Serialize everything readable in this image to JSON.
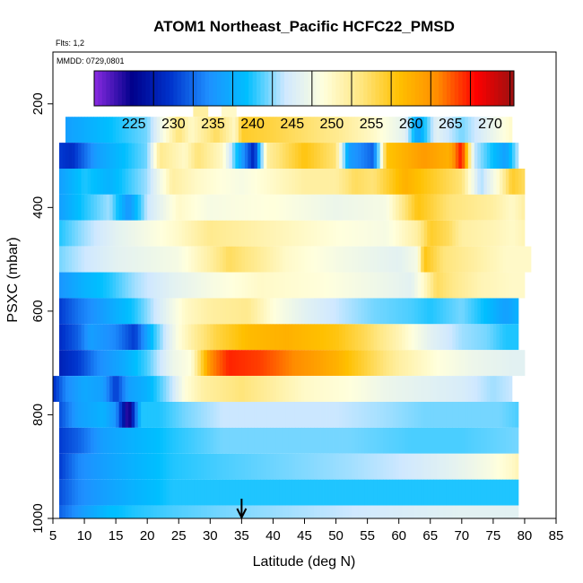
{
  "chart_data": {
    "type": "heatmap",
    "title": "ATOM1 Northeast_Pacific HCFC22_PMSD",
    "flights_text": "Flts: 1,2",
    "mmdd_text": "MMDD: 0729,0801",
    "xlabel": "Latitude (deg N)",
    "ylabel": "PSXC (mbar)",
    "xlim": [
      5,
      85
    ],
    "ylim": [
      1000,
      100
    ],
    "x_ticks": [
      5,
      10,
      15,
      20,
      25,
      30,
      35,
      40,
      45,
      50,
      55,
      60,
      65,
      70,
      75,
      80,
      85
    ],
    "y_ticks": [
      200,
      400,
      600,
      800,
      1000
    ],
    "marker": {
      "latitude": 35,
      "symbol": "arrow-down"
    },
    "colorbar": {
      "min": 220,
      "max": 273,
      "ticks": [
        225,
        230,
        235,
        240,
        245,
        250,
        255,
        260,
        265,
        270
      ],
      "colors": [
        "#8a2be2",
        "#00008b",
        "#0033cc",
        "#1e90ff",
        "#00bfff",
        "#cfe8ff",
        "#ffffdd",
        "#ffe680",
        "#ffc000",
        "#ff8c00",
        "#ff0000",
        "#9b1010"
      ]
    },
    "rows": [
      {
        "pressure": 250,
        "stops": [
          [
            7,
            236
          ],
          [
            20,
            242
          ],
          [
            25,
            254
          ],
          [
            27,
            250
          ],
          [
            31,
            255
          ],
          [
            34,
            250
          ],
          [
            35,
            257
          ],
          [
            40,
            256
          ],
          [
            50,
            253
          ],
          [
            56,
            250
          ],
          [
            61,
            246
          ],
          [
            63,
            236
          ],
          [
            66,
            246
          ],
          [
            70,
            242
          ],
          [
            74,
            246
          ],
          [
            78,
            250
          ]
        ]
      },
      {
        "pressure": 300,
        "stops": [
          [
            6,
            230
          ],
          [
            8,
            229
          ],
          [
            12,
            236
          ],
          [
            20,
            242
          ],
          [
            22,
            253
          ],
          [
            26,
            250
          ],
          [
            28,
            254
          ],
          [
            32,
            250
          ],
          [
            35,
            236
          ],
          [
            37,
            228
          ],
          [
            39,
            252
          ],
          [
            45,
            258
          ],
          [
            50,
            254
          ],
          [
            52,
            236
          ],
          [
            56,
            232
          ],
          [
            58,
            258
          ],
          [
            64,
            262
          ],
          [
            68,
            260
          ],
          [
            70,
            268
          ],
          [
            72,
            244
          ],
          [
            77,
            236
          ],
          [
            79,
            244
          ]
        ]
      },
      {
        "pressure": 350,
        "stops": [
          [
            6,
            236
          ],
          [
            10,
            240
          ],
          [
            14,
            238
          ],
          [
            20,
            243
          ],
          [
            24,
            252
          ],
          [
            28,
            250
          ],
          [
            35,
            248
          ],
          [
            40,
            250
          ],
          [
            45,
            252
          ],
          [
            50,
            252
          ],
          [
            53,
            255
          ],
          [
            56,
            254
          ],
          [
            61,
            260
          ],
          [
            64,
            258
          ],
          [
            70,
            254
          ],
          [
            73,
            243
          ],
          [
            76,
            250
          ],
          [
            78,
            257
          ],
          [
            80,
            255
          ]
        ]
      },
      {
        "pressure": 400,
        "stops": [
          [
            6,
            236
          ],
          [
            10,
            240
          ],
          [
            14,
            243
          ],
          [
            17,
            235
          ],
          [
            20,
            244
          ],
          [
            25,
            250
          ],
          [
            30,
            248
          ],
          [
            40,
            249
          ],
          [
            50,
            247
          ],
          [
            58,
            248
          ],
          [
            63,
            258
          ],
          [
            68,
            254
          ],
          [
            75,
            252
          ],
          [
            78,
            250
          ],
          [
            80,
            252
          ]
        ]
      },
      {
        "pressure": 450,
        "stops": [
          [
            6,
            240
          ],
          [
            10,
            243
          ],
          [
            15,
            246
          ],
          [
            20,
            248
          ],
          [
            25,
            250
          ],
          [
            30,
            253
          ],
          [
            35,
            252
          ],
          [
            40,
            251
          ],
          [
            50,
            249
          ],
          [
            58,
            248
          ],
          [
            63,
            252
          ],
          [
            65,
            257
          ],
          [
            68,
            255
          ],
          [
            70,
            252
          ],
          [
            75,
            251
          ],
          [
            78,
            250
          ],
          [
            80,
            251
          ]
        ]
      },
      {
        "pressure": 500,
        "stops": [
          [
            6,
            242
          ],
          [
            10,
            244
          ],
          [
            15,
            246
          ],
          [
            20,
            247
          ],
          [
            25,
            248
          ],
          [
            30,
            252
          ],
          [
            33,
            255
          ],
          [
            37,
            253
          ],
          [
            42,
            250
          ],
          [
            50,
            248
          ],
          [
            60,
            246
          ],
          [
            63,
            248
          ],
          [
            64,
            258
          ],
          [
            67,
            254
          ],
          [
            72,
            252
          ],
          [
            77,
            250
          ],
          [
            81,
            250
          ]
        ]
      },
      {
        "pressure": 550,
        "stops": [
          [
            6,
            235
          ],
          [
            10,
            238
          ],
          [
            14,
            240
          ],
          [
            18,
            243
          ],
          [
            24,
            246
          ],
          [
            30,
            248
          ],
          [
            38,
            250
          ],
          [
            48,
            249
          ],
          [
            58,
            247
          ],
          [
            62,
            246
          ],
          [
            64,
            250
          ],
          [
            66,
            255
          ],
          [
            69,
            253
          ],
          [
            73,
            251
          ],
          [
            78,
            250
          ],
          [
            80,
            250
          ]
        ]
      },
      {
        "pressure": 600,
        "stops": [
          [
            6,
            230
          ],
          [
            9,
            233
          ],
          [
            13,
            236
          ],
          [
            18,
            240
          ],
          [
            22,
            245
          ],
          [
            26,
            250
          ],
          [
            30,
            252
          ],
          [
            36,
            253
          ],
          [
            40,
            249
          ],
          [
            45,
            246
          ],
          [
            50,
            244
          ],
          [
            56,
            242
          ],
          [
            62,
            241
          ],
          [
            65,
            240
          ],
          [
            70,
            242
          ],
          [
            74,
            239
          ],
          [
            77,
            236
          ],
          [
            79,
            238
          ]
        ]
      },
      {
        "pressure": 650,
        "stops": [
          [
            6,
            229
          ],
          [
            9,
            232
          ],
          [
            11,
            236
          ],
          [
            15,
            234
          ],
          [
            18,
            230
          ],
          [
            21,
            240
          ],
          [
            25,
            249
          ],
          [
            28,
            253
          ],
          [
            31,
            256
          ],
          [
            36,
            259
          ],
          [
            42,
            260
          ],
          [
            50,
            258
          ],
          [
            55,
            255
          ],
          [
            60,
            251
          ],
          [
            65,
            246
          ],
          [
            70,
            243
          ],
          [
            74,
            242
          ],
          [
            77,
            240
          ],
          [
            79,
            240
          ]
        ]
      },
      {
        "pressure": 700,
        "stops": [
          [
            6,
            228
          ],
          [
            9,
            230
          ],
          [
            12,
            234
          ],
          [
            16,
            237
          ],
          [
            20,
            241
          ],
          [
            24,
            247
          ],
          [
            27,
            249
          ],
          [
            29,
            258
          ],
          [
            30,
            263
          ],
          [
            33,
            267
          ],
          [
            38,
            266
          ],
          [
            44,
            263
          ],
          [
            50,
            260
          ],
          [
            55,
            256
          ],
          [
            60,
            252
          ],
          [
            66,
            249
          ],
          [
            72,
            247
          ],
          [
            78,
            246
          ],
          [
            80,
            246
          ]
        ]
      },
      {
        "pressure": 750,
        "stops": [
          [
            5,
            229
          ],
          [
            7,
            234
          ],
          [
            10,
            237
          ],
          [
            13,
            236
          ],
          [
            15,
            230
          ],
          [
            17,
            236
          ],
          [
            20,
            238
          ],
          [
            24,
            244
          ],
          [
            26,
            249
          ],
          [
            29,
            252
          ],
          [
            35,
            254
          ],
          [
            40,
            252
          ],
          [
            45,
            250
          ],
          [
            52,
            249
          ],
          [
            58,
            247
          ],
          [
            64,
            246
          ],
          [
            70,
            245
          ],
          [
            75,
            243
          ],
          [
            78,
            244
          ]
        ]
      },
      {
        "pressure": 800,
        "stops": [
          [
            6,
            231
          ],
          [
            9,
            236
          ],
          [
            13,
            238
          ],
          [
            15,
            235
          ],
          [
            17,
            222
          ],
          [
            19,
            240
          ],
          [
            22,
            240
          ],
          [
            26,
            242
          ],
          [
            32,
            244
          ],
          [
            40,
            244
          ],
          [
            50,
            244
          ],
          [
            58,
            243
          ],
          [
            64,
            242
          ],
          [
            70,
            242
          ],
          [
            76,
            242
          ],
          [
            79,
            241
          ]
        ]
      },
      {
        "pressure": 850,
        "stops": [
          [
            6,
            230
          ],
          [
            9,
            232
          ],
          [
            13,
            236
          ],
          [
            18,
            238
          ],
          [
            24,
            240
          ],
          [
            32,
            242
          ],
          [
            42,
            242
          ],
          [
            52,
            242
          ],
          [
            62,
            241
          ],
          [
            70,
            241
          ],
          [
            79,
            242
          ]
        ]
      },
      {
        "pressure": 900,
        "stops": [
          [
            6,
            230
          ],
          [
            9,
            234
          ],
          [
            13,
            236
          ],
          [
            18,
            238
          ],
          [
            24,
            240
          ],
          [
            32,
            241
          ],
          [
            42,
            242
          ],
          [
            52,
            243
          ],
          [
            60,
            244
          ],
          [
            68,
            246
          ],
          [
            74,
            248
          ],
          [
            78,
            250
          ],
          [
            79,
            251
          ]
        ]
      },
      {
        "pressure": 950,
        "stops": [
          [
            6,
            231
          ],
          [
            9,
            234
          ],
          [
            13,
            236
          ],
          [
            18,
            238
          ],
          [
            24,
            240
          ],
          [
            30,
            240
          ],
          [
            40,
            240
          ],
          [
            50,
            240
          ],
          [
            60,
            240
          ],
          [
            70,
            240
          ],
          [
            79,
            240
          ]
        ]
      },
      {
        "pressure": 1000,
        "stops": [
          [
            6,
            232
          ],
          [
            10,
            236
          ],
          [
            14,
            239
          ],
          [
            18,
            240
          ],
          [
            24,
            241
          ],
          [
            32,
            242
          ],
          [
            42,
            243
          ],
          [
            52,
            244
          ],
          [
            60,
            245
          ],
          [
            70,
            246
          ],
          [
            79,
            246
          ]
        ]
      }
    ],
    "top_patches": [
      {
        "lat": 28.5,
        "pressure_top": 185,
        "pressure_bottom": 225,
        "value": 252
      },
      {
        "lat": 33,
        "pressure_top": 195,
        "pressure_bottom": 225,
        "value": 250
      }
    ]
  }
}
